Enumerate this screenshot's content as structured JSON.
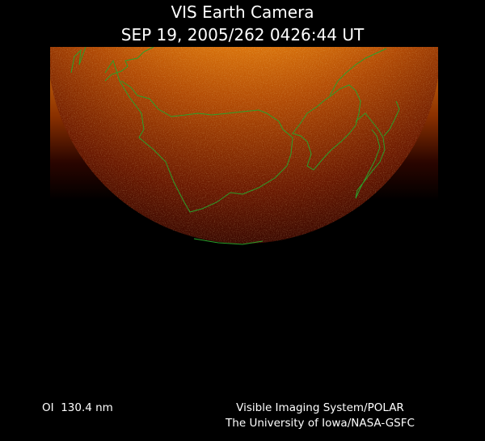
{
  "header": {
    "title": "VIS Earth Camera",
    "timestamp": "SEP 19, 2005/262 0426:44 UT"
  },
  "footer": {
    "wavelength": "OI  130.4 nm",
    "credit_line1": "Visible Imaging System/POLAR",
    "credit_line2": "The University of Iowa/NASA-GSFC"
  }
}
